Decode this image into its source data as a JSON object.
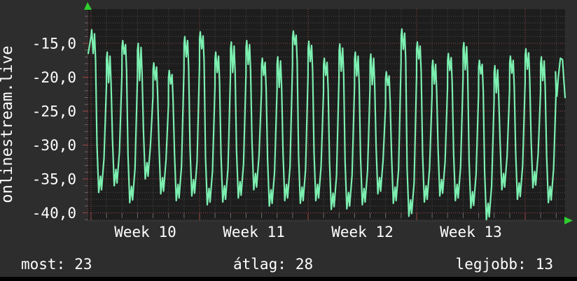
{
  "window": {
    "outer_bg": "#2d2d2d",
    "bottom_bar_color": "#000000",
    "text_color": "#ffffff"
  },
  "stats": {
    "most": {
      "label": "most:",
      "value": "23"
    },
    "atlag": {
      "label": "átlag:",
      "value": "28"
    },
    "legjobb": {
      "label": "legjobb:",
      "value": "13"
    }
  },
  "chart_data": {
    "type": "line",
    "title": "onlinestream.live",
    "xlabel": "",
    "ylabel": "onlinestream.live",
    "x_tick_labels": [
      "Week 10",
      "Week 11",
      "Week 12",
      "Week 13"
    ],
    "y_tick_labels": [
      "-15,0",
      "-20,0",
      "-25,0",
      "-30,0",
      "-35,0",
      "-40,0"
    ],
    "y_major_values": [
      -15,
      -20,
      -25,
      -30,
      -35,
      -40
    ],
    "ylim": [
      -41.3,
      -9.9
    ],
    "grid": "minor gray dotted each unit/day, major red dotted each 5 units/week",
    "legend_position": "none",
    "value_meaning": "radio stream chart position plotted negated (lower rank = higher peak)",
    "stats": {
      "most": 23,
      "atlag": 28,
      "legjobb": 13
    },
    "days_peak_trough_notch": [
      [
        13.0,
        37.0,
        3.5
      ],
      [
        16.3,
        36.0,
        4.5
      ],
      [
        14.6,
        38.5,
        2.0
      ],
      [
        15.0,
        35.0,
        5.5
      ],
      [
        17.9,
        37.2,
        2.5
      ],
      [
        19.0,
        38.2,
        2.0
      ],
      [
        14.0,
        37.5,
        3.0
      ],
      [
        13.3,
        38.8,
        2.5
      ],
      [
        16.3,
        38.4,
        3.0
      ],
      [
        14.8,
        37.8,
        4.5
      ],
      [
        14.6,
        36.6,
        3.5
      ],
      [
        17.2,
        39.0,
        2.5
      ],
      [
        17.0,
        38.2,
        4.5
      ],
      [
        13.2,
        38.6,
        2.0
      ],
      [
        14.7,
        38.2,
        3.0
      ],
      [
        17.2,
        39.5,
        2.5
      ],
      [
        15.1,
        39.4,
        4.0
      ],
      [
        16.3,
        38.8,
        3.5
      ],
      [
        16.6,
        37.2,
        4.5
      ],
      [
        19.2,
        38.6,
        2.0
      ],
      [
        12.9,
        40.5,
        3.0
      ],
      [
        14.8,
        38.4,
        2.5
      ],
      [
        17.5,
        37.5,
        3.5
      ],
      [
        16.5,
        38.2,
        2.5
      ],
      [
        14.9,
        39.3,
        4.0
      ],
      [
        17.5,
        41.0,
        2.0
      ],
      [
        18.3,
        36.6,
        4.0
      ],
      [
        16.9,
        38.0,
        2.5
      ],
      [
        15.8,
        36.3,
        3.0
      ],
      [
        17.0,
        38.5,
        3.5
      ],
      [
        17.2,
        23.0,
        5.5
      ]
    ],
    "end_value": 23,
    "line_color": "#7cefb0",
    "plot_bg": "#1d1d1d",
    "grid_minor_color": "#4a4a4a",
    "grid_major_color": "#a04848",
    "axis_color": "#a04848",
    "arrow_color": "#2fce2f",
    "label_color": "#ffffff"
  }
}
